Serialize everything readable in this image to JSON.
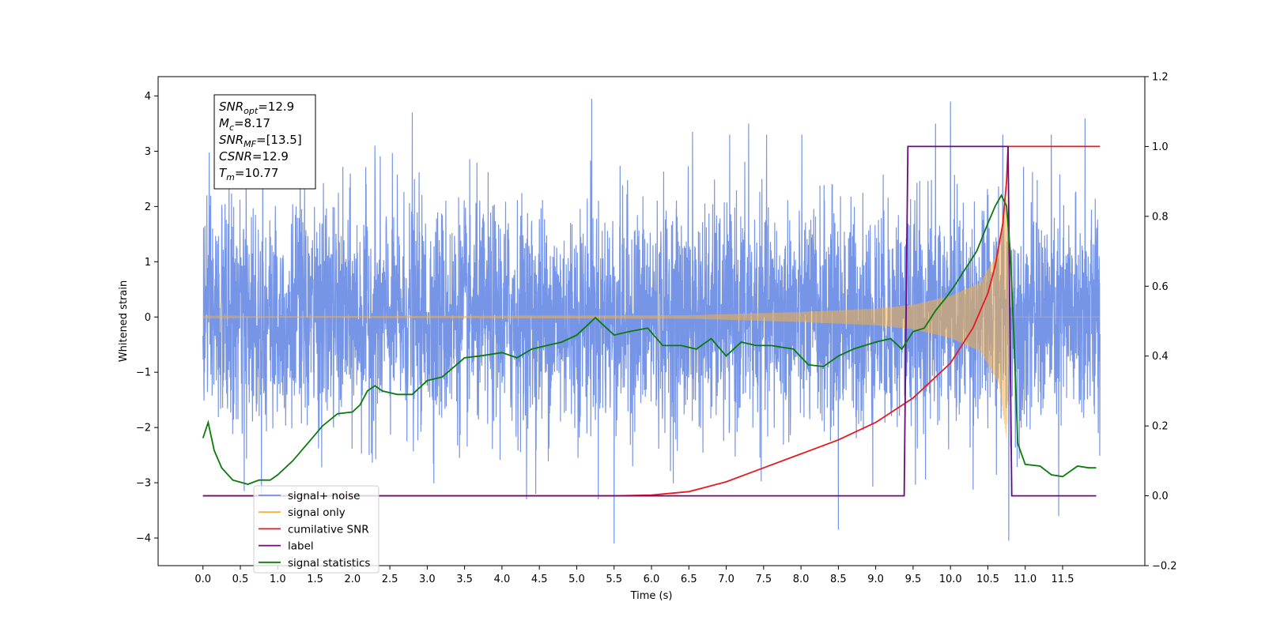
{
  "chart_data": {
    "type": "line",
    "xlabel": "Time (s)",
    "ylabel_left": "Whitened strain",
    "ylabel_right": "",
    "xlim": [
      -0.6,
      12.6
    ],
    "ylim_left": [
      -4.5,
      4.35
    ],
    "ylim_right": [
      -0.2,
      1.2
    ],
    "x_ticks": [
      0.0,
      0.5,
      1.0,
      1.5,
      2.0,
      2.5,
      3.0,
      3.5,
      4.0,
      4.5,
      5.0,
      5.5,
      6.0,
      6.5,
      7.0,
      7.5,
      8.0,
      8.5,
      9.0,
      9.5,
      10.0,
      10.5,
      11.0,
      11.5
    ],
    "x_tick_labels": [
      "0.0",
      "0.5",
      "1.0",
      "1.5",
      "2.0",
      "2.5",
      "3.0",
      "3.5",
      "4.0",
      "4.5",
      "5.0",
      "5.5",
      "6.0",
      "6.5",
      "7.0",
      "7.5",
      "8.0",
      "8.5",
      "9.0",
      "9.5",
      "10.0",
      "10.5",
      "11.0",
      "11.5"
    ],
    "y_ticks_left": [
      -4,
      -3,
      -2,
      -1,
      0,
      1,
      2,
      3,
      4
    ],
    "y_tick_labels_left": [
      "−4",
      "−3",
      "−2",
      "−1",
      "0",
      "1",
      "2",
      "3",
      "4"
    ],
    "y_ticks_right": [
      -0.2,
      0.0,
      0.2,
      0.4,
      0.6,
      0.8,
      1.0,
      1.2
    ],
    "y_tick_labels_right": [
      "−0.2",
      "0.0",
      "0.2",
      "0.4",
      "0.6",
      "0.8",
      "1.0",
      "1.2"
    ],
    "grid": false,
    "legend_placement": "lower-left",
    "info_box": {
      "lines": [
        {
          "base": "SNR",
          "sub": "opt",
          "rest": "=12.9"
        },
        {
          "base": "M",
          "sub": "c",
          "rest": "=8.17"
        },
        {
          "base": "SNR",
          "sub": "MF",
          "rest": "=[13.5]"
        },
        {
          "base": "CSNR",
          "sub": "",
          "rest": "=12.9"
        },
        {
          "base": "T",
          "sub": "m",
          "rest": "=10.77"
        }
      ]
    },
    "series": [
      {
        "name": "signal+ noise",
        "axis": "left",
        "color": "#6f8fe6",
        "style": "dense-noise",
        "x_range": [
          0.0,
          12.0
        ],
        "envelope_rms": 1.0,
        "visible_extremes": [
          {
            "x": 0.05,
            "y": 2.2
          },
          {
            "x": 0.55,
            "y": -3.15
          },
          {
            "x": 0.8,
            "y": 3.3
          },
          {
            "x": 1.3,
            "y": 3.25
          },
          {
            "x": 2.3,
            "y": 3.1
          },
          {
            "x": 2.8,
            "y": 3.7
          },
          {
            "x": 4.45,
            "y": -3.2
          },
          {
            "x": 5.2,
            "y": 3.95
          },
          {
            "x": 5.5,
            "y": -4.1
          },
          {
            "x": 6.55,
            "y": 3.35
          },
          {
            "x": 7.3,
            "y": 3.5
          },
          {
            "x": 8.5,
            "y": -3.85
          },
          {
            "x": 9.8,
            "y": 3.5
          },
          {
            "x": 10.0,
            "y": 3.9
          },
          {
            "x": 10.7,
            "y": 3.3
          },
          {
            "x": 10.78,
            "y": -4.05
          },
          {
            "x": 11.45,
            "y": -3.6
          },
          {
            "x": 11.8,
            "y": 3.6
          }
        ]
      },
      {
        "name": "signal only",
        "axis": "left",
        "color": "#f5b042",
        "style": "chirp",
        "x_range": [
          0.0,
          12.0
        ],
        "amplitude_points": [
          [
            0.0,
            0.01
          ],
          [
            6.5,
            0.03
          ],
          [
            8.0,
            0.09
          ],
          [
            9.0,
            0.15
          ],
          [
            9.5,
            0.22
          ],
          [
            10.0,
            0.38
          ],
          [
            10.4,
            0.62
          ],
          [
            10.65,
            1.2
          ],
          [
            10.75,
            2.2
          ],
          [
            10.8,
            0.0
          ],
          [
            12.0,
            0.0
          ]
        ]
      },
      {
        "name": "cumilative SNR",
        "axis": "right",
        "color": "#e8191c",
        "points": [
          [
            0.0,
            0.0
          ],
          [
            5.5,
            0.0
          ],
          [
            6.0,
            0.002
          ],
          [
            6.5,
            0.012
          ],
          [
            7.0,
            0.04
          ],
          [
            7.5,
            0.08
          ],
          [
            8.0,
            0.12
          ],
          [
            8.5,
            0.16
          ],
          [
            9.0,
            0.21
          ],
          [
            9.5,
            0.28
          ],
          [
            10.0,
            0.38
          ],
          [
            10.3,
            0.48
          ],
          [
            10.5,
            0.58
          ],
          [
            10.6,
            0.66
          ],
          [
            10.7,
            0.78
          ],
          [
            10.75,
            0.9
          ],
          [
            10.77,
            1.0
          ],
          [
            12.0,
            1.0
          ]
        ]
      },
      {
        "name": "label",
        "axis": "right",
        "color": "#6a0a7a",
        "points": [
          [
            0.0,
            0.0
          ],
          [
            9.38,
            0.0
          ],
          [
            9.43,
            1.0
          ],
          [
            10.77,
            1.0
          ],
          [
            10.82,
            0.0
          ],
          [
            11.95,
            0.0
          ]
        ]
      },
      {
        "name": "signal statistics",
        "axis": "right",
        "color": "#0a7a0a",
        "points": [
          [
            0.0,
            0.165
          ],
          [
            0.07,
            0.21
          ],
          [
            0.15,
            0.13
          ],
          [
            0.25,
            0.08
          ],
          [
            0.4,
            0.045
          ],
          [
            0.6,
            0.033
          ],
          [
            0.75,
            0.045
          ],
          [
            0.9,
            0.045
          ],
          [
            1.0,
            0.06
          ],
          [
            1.2,
            0.1
          ],
          [
            1.4,
            0.15
          ],
          [
            1.6,
            0.2
          ],
          [
            1.8,
            0.235
          ],
          [
            2.0,
            0.24
          ],
          [
            2.1,
            0.26
          ],
          [
            2.2,
            0.3
          ],
          [
            2.3,
            0.315
          ],
          [
            2.4,
            0.3
          ],
          [
            2.5,
            0.295
          ],
          [
            2.6,
            0.29
          ],
          [
            2.8,
            0.29
          ],
          [
            3.0,
            0.33
          ],
          [
            3.2,
            0.34
          ],
          [
            3.5,
            0.395
          ],
          [
            3.7,
            0.4
          ],
          [
            4.0,
            0.41
          ],
          [
            4.2,
            0.395
          ],
          [
            4.4,
            0.42
          ],
          [
            4.6,
            0.43
          ],
          [
            4.8,
            0.44
          ],
          [
            5.0,
            0.46
          ],
          [
            5.25,
            0.51
          ],
          [
            5.5,
            0.46
          ],
          [
            5.7,
            0.47
          ],
          [
            5.95,
            0.48
          ],
          [
            6.15,
            0.43
          ],
          [
            6.4,
            0.43
          ],
          [
            6.6,
            0.42
          ],
          [
            6.8,
            0.45
          ],
          [
            7.0,
            0.4
          ],
          [
            7.2,
            0.44
          ],
          [
            7.4,
            0.43
          ],
          [
            7.6,
            0.43
          ],
          [
            7.9,
            0.42
          ],
          [
            8.1,
            0.375
          ],
          [
            8.3,
            0.37
          ],
          [
            8.5,
            0.4
          ],
          [
            8.7,
            0.42
          ],
          [
            9.0,
            0.44
          ],
          [
            9.2,
            0.45
          ],
          [
            9.35,
            0.42
          ],
          [
            9.5,
            0.47
          ],
          [
            9.65,
            0.48
          ],
          [
            9.8,
            0.53
          ],
          [
            9.95,
            0.57
          ],
          [
            10.05,
            0.6
          ],
          [
            10.2,
            0.65
          ],
          [
            10.35,
            0.7
          ],
          [
            10.5,
            0.78
          ],
          [
            10.6,
            0.83
          ],
          [
            10.68,
            0.86
          ],
          [
            10.75,
            0.83
          ],
          [
            10.8,
            0.7
          ],
          [
            10.85,
            0.45
          ],
          [
            10.9,
            0.15
          ],
          [
            11.0,
            0.09
          ],
          [
            11.2,
            0.085
          ],
          [
            11.35,
            0.06
          ],
          [
            11.5,
            0.055
          ],
          [
            11.7,
            0.085
          ],
          [
            11.85,
            0.08
          ],
          [
            11.95,
            0.08
          ]
        ]
      }
    ],
    "legend": [
      {
        "label": "signal+ noise",
        "color": "#6f8fe6"
      },
      {
        "label": "signal only",
        "color": "#f5b042"
      },
      {
        "label": "cumilative SNR",
        "color": "#e8191c"
      },
      {
        "label": "label",
        "color": "#6a0a7a"
      },
      {
        "label": "signal statistics",
        "color": "#0a7a0a"
      }
    ]
  }
}
